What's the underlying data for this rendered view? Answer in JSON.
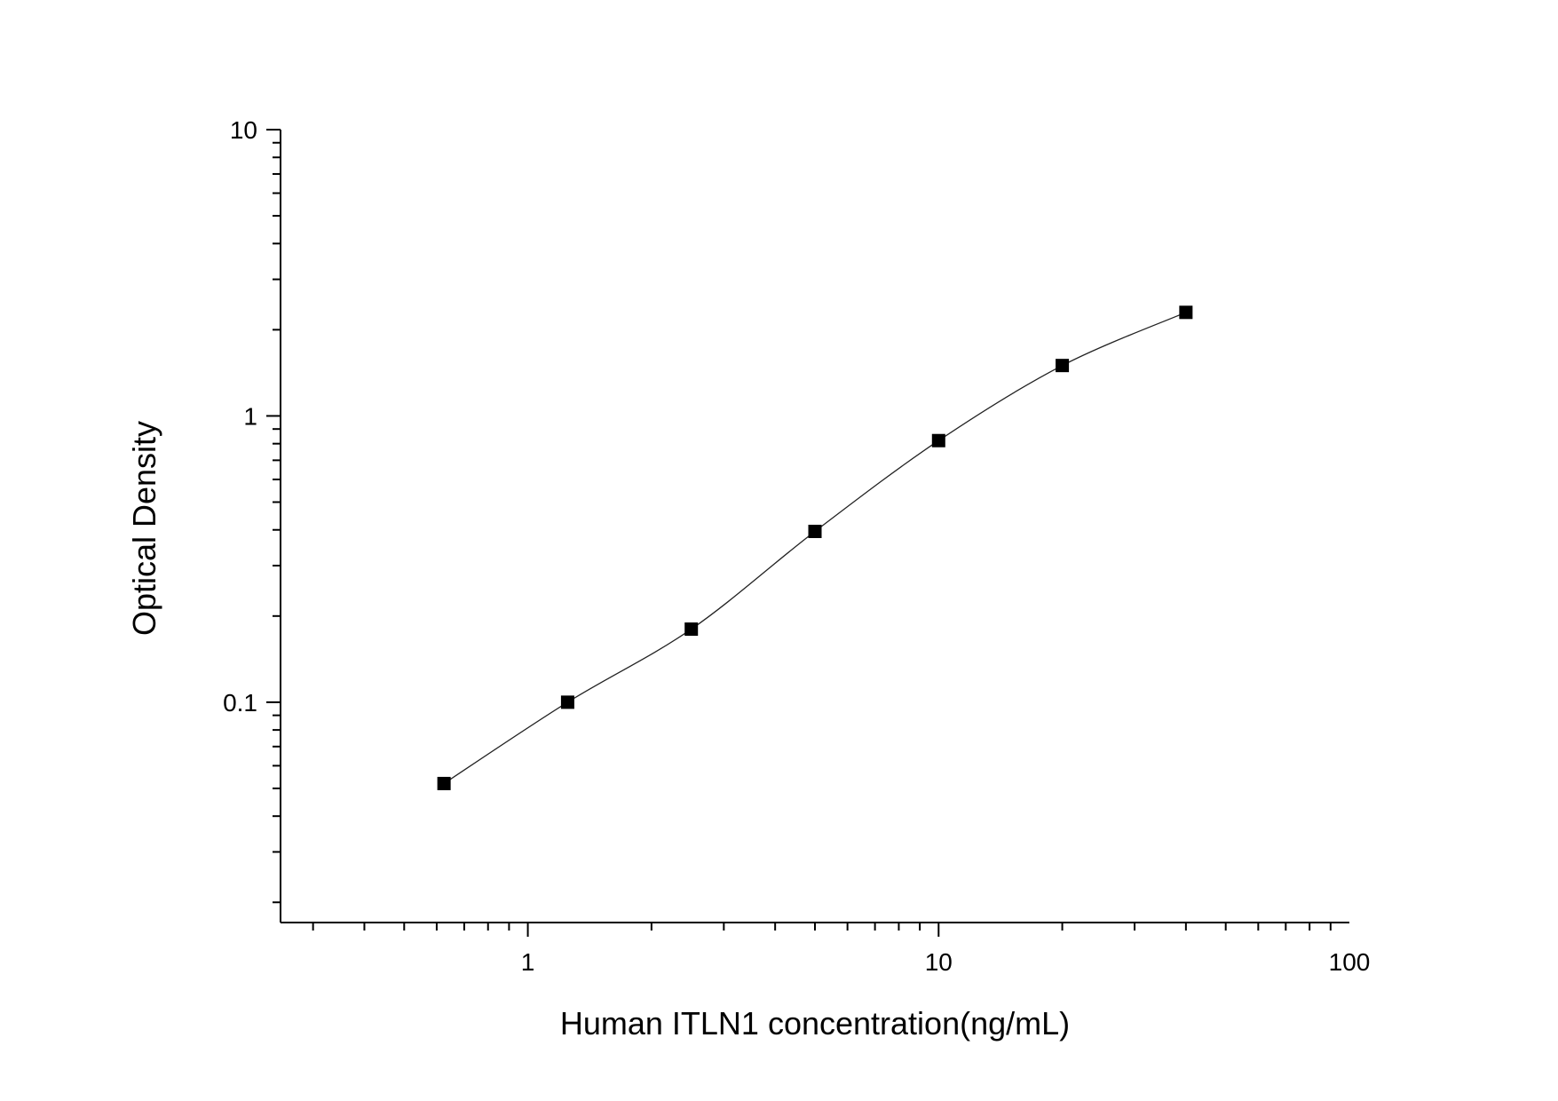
{
  "chart_data": {
    "type": "scatter",
    "xlabel": "Human ITLN1 concentration(ng/mL)",
    "ylabel": "Optical Density",
    "x_scale": "log",
    "y_scale": "log",
    "xlim": [
      0.25,
      100
    ],
    "ylim": [
      0.017,
      10
    ],
    "x_ticks": [
      {
        "value": 1,
        "label": "1"
      },
      {
        "value": 10,
        "label": "10"
      },
      {
        "value": 100,
        "label": "100"
      }
    ],
    "y_ticks": [
      {
        "value": 0.1,
        "label": "0.1"
      },
      {
        "value": 1,
        "label": "1"
      },
      {
        "value": 10,
        "label": "10"
      }
    ],
    "grid": false,
    "legend": false,
    "series": [
      {
        "marker": "square",
        "color": "#000000",
        "points": [
          {
            "x": 0.625,
            "y": 0.052
          },
          {
            "x": 1.25,
            "y": 0.1
          },
          {
            "x": 2.5,
            "y": 0.18
          },
          {
            "x": 5,
            "y": 0.395
          },
          {
            "x": 10,
            "y": 0.82
          },
          {
            "x": 20,
            "y": 1.5
          },
          {
            "x": 40,
            "y": 2.3
          }
        ]
      }
    ],
    "fit_curve": {
      "type": "smooth",
      "color": "#222222"
    }
  }
}
